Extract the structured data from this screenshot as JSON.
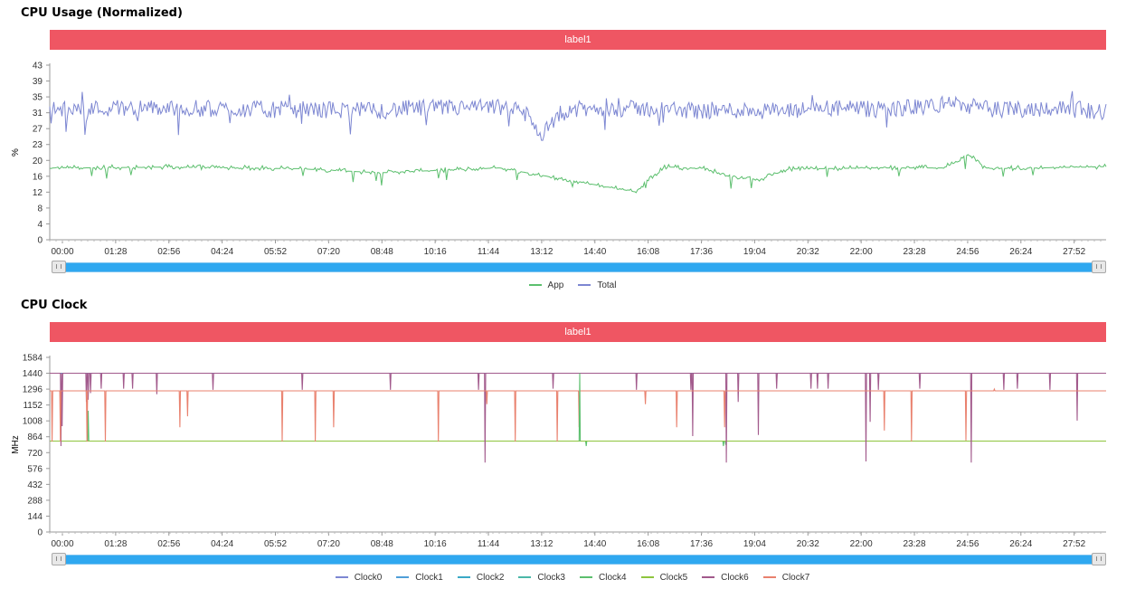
{
  "charts": {
    "usage": {
      "title": "CPU Usage (Normalized)",
      "banner": "label1"
    },
    "clock": {
      "title": "CPU Clock",
      "banner": "label1"
    }
  },
  "chart_data": [
    {
      "type": "line",
      "title": "CPU Usage (Normalized)",
      "banner": "label1",
      "ylabel": "%",
      "ylim": [
        0,
        43
      ],
      "yticks": [
        "0",
        "4",
        "8",
        "12",
        "16",
        "20",
        "23",
        "27",
        "31",
        "35",
        "39",
        "43"
      ],
      "xlim": [
        0,
        1786
      ],
      "xticks": [
        "00:00",
        "01:28",
        "02:56",
        "04:24",
        "05:52",
        "07:20",
        "08:48",
        "10:16",
        "11:44",
        "13:12",
        "14:40",
        "16:08",
        "17:36",
        "19:04",
        "20:32",
        "22:00",
        "23:28",
        "24:56",
        "26:24",
        "27:52"
      ],
      "grid": false,
      "legend_position": "bottom",
      "series": [
        {
          "name": "App",
          "color": "#5cbf6e",
          "baseline": 17.7,
          "x": [
            0,
            60,
            200,
            420,
            560,
            760,
            990,
            1040,
            1070,
            1110,
            1150,
            1200,
            1250,
            1400,
            1510,
            1540,
            1552,
            1570,
            1580,
            1600,
            1786
          ],
          "values": [
            17.7,
            17.7,
            17.9,
            17.5,
            16.5,
            17.7,
            11.8,
            18.0,
            17.7,
            17.6,
            15.5,
            14.8,
            17.4,
            17.7,
            17.7,
            19.5,
            21.0,
            19.5,
            17.7,
            17.5,
            18.0
          ]
        },
        {
          "name": "Total",
          "color": "#7d87d2",
          "baseline": 32,
          "x": [
            0,
            120,
            300,
            480,
            550,
            620,
            760,
            800,
            830,
            880,
            1000,
            1100,
            1200,
            1250,
            1300,
            1400,
            1500,
            1520,
            1540,
            1600,
            1700,
            1786
          ],
          "values": [
            32,
            32.5,
            32.2,
            32.0,
            31.8,
            32.4,
            32.6,
            31.7,
            26.0,
            32.0,
            32.3,
            31.8,
            32.0,
            31.5,
            32.5,
            32.0,
            33.0,
            34.0,
            33.2,
            32.0,
            32.5,
            31.5
          ]
        }
      ]
    },
    {
      "type": "line",
      "title": "CPU Clock",
      "banner": "label1",
      "ylabel": "MHz",
      "ylim": [
        0,
        1584
      ],
      "yticks": [
        "0",
        "144",
        "288",
        "432",
        "576",
        "720",
        "864",
        "1008",
        "1152",
        "1296",
        "1440",
        "1584"
      ],
      "xlim": [
        0,
        1786
      ],
      "xticks": [
        "00:00",
        "01:28",
        "02:56",
        "04:24",
        "05:52",
        "07:20",
        "08:48",
        "10:16",
        "11:44",
        "13:12",
        "14:40",
        "16:08",
        "17:36",
        "19:04",
        "20:32",
        "22:00",
        "23:28",
        "24:56",
        "26:24",
        "27:52"
      ],
      "grid": false,
      "legend_position": "bottom",
      "series": [
        {
          "name": "Clock0",
          "color": "#7d87d2",
          "baseline": 1440
        },
        {
          "name": "Clock1",
          "color": "#4f9ed8",
          "baseline": 1440
        },
        {
          "name": "Clock2",
          "color": "#3aa9c6",
          "baseline": 825
        },
        {
          "name": "Clock3",
          "color": "#4bb7a8",
          "baseline": 825
        },
        {
          "name": "Clock4",
          "color": "#5cbf6e",
          "baseline": 825
        },
        {
          "name": "Clock5",
          "color": "#8ec53e",
          "baseline": 825
        },
        {
          "name": "Clock6",
          "color": "#a25a8c",
          "baseline": 1440
        },
        {
          "name": "Clock7",
          "color": "#e9816e",
          "baseline": 1280
        }
      ]
    }
  ]
}
